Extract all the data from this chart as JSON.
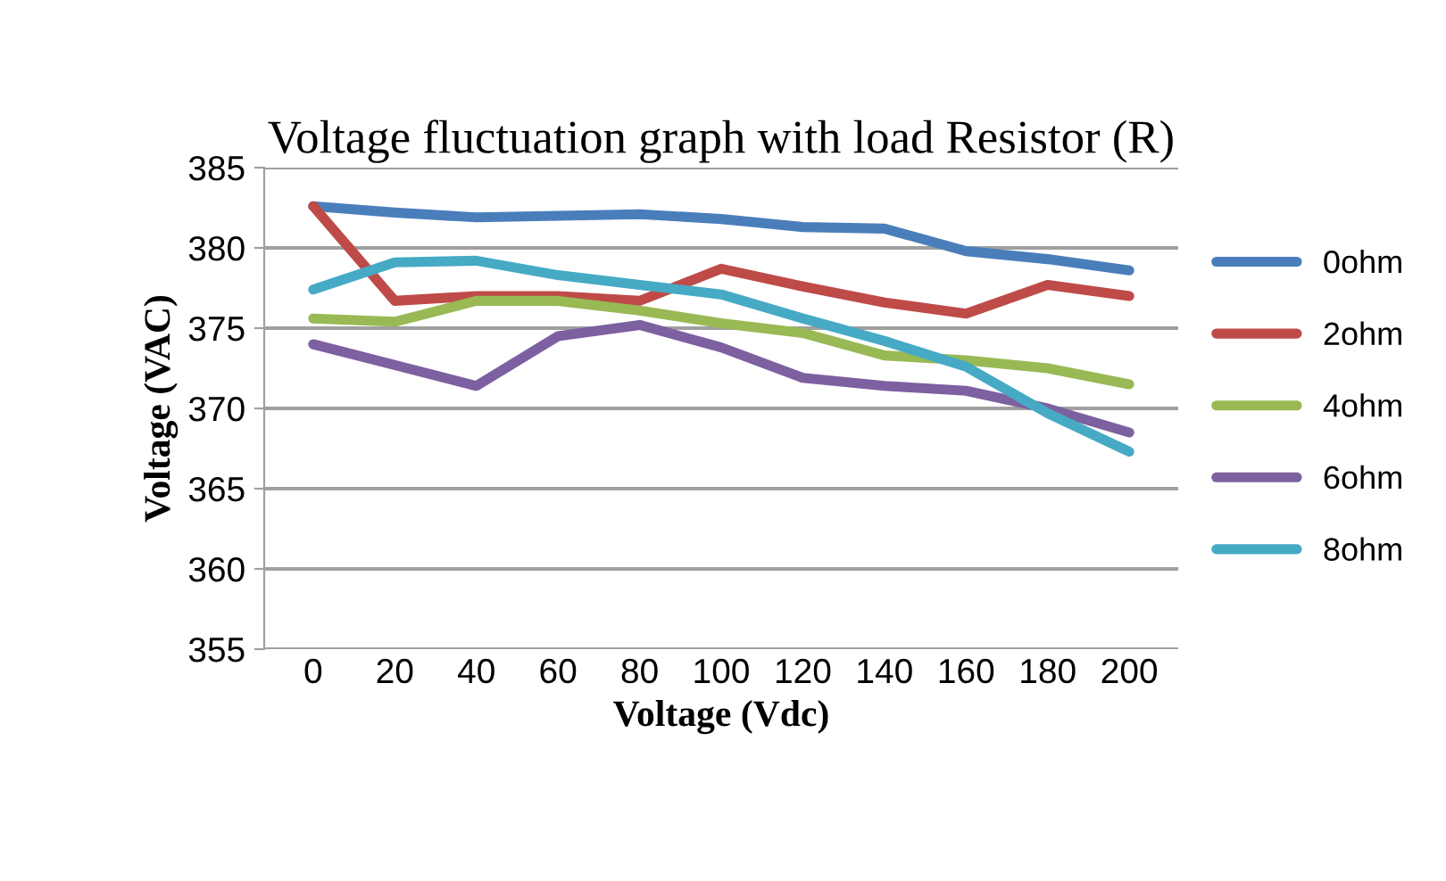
{
  "chart_data": {
    "type": "line",
    "title": "Voltage fluctuation graph with load Resistor (R)",
    "xlabel": "Voltage (Vdc)",
    "ylabel": "Voltage (VAC)",
    "categories": [
      "0",
      "20",
      "40",
      "60",
      "80",
      "100",
      "120",
      "140",
      "160",
      "180",
      "200"
    ],
    "series": [
      {
        "name": "0ohm",
        "color": "#4a7ebb",
        "values": [
          382.6,
          382.2,
          381.9,
          382.0,
          382.1,
          381.8,
          381.3,
          381.2,
          379.8,
          379.3,
          378.6
        ]
      },
      {
        "name": "2ohm",
        "color": "#be4b48",
        "values": [
          382.6,
          376.7,
          377.0,
          377.0,
          376.7,
          378.7,
          377.6,
          376.6,
          375.9,
          377.7,
          377.0
        ]
      },
      {
        "name": "4ohm",
        "color": "#98b954",
        "values": [
          375.6,
          375.4,
          376.7,
          376.7,
          376.1,
          375.3,
          374.7,
          373.3,
          373.0,
          372.5,
          371.5
        ]
      },
      {
        "name": "6ohm",
        "color": "#7d60a0",
        "values": [
          374.0,
          372.7,
          371.4,
          374.5,
          375.2,
          373.8,
          371.9,
          371.4,
          371.1,
          370.0,
          368.5
        ]
      },
      {
        "name": "8ohm",
        "color": "#46aac5",
        "values": [
          377.4,
          379.1,
          379.2,
          378.3,
          377.7,
          377.1,
          375.6,
          374.2,
          372.6,
          369.7,
          367.3
        ]
      }
    ],
    "ylim": [
      355,
      385
    ],
    "yticks": [
      355,
      360,
      365,
      370,
      375,
      380,
      385
    ],
    "grid": "y",
    "legend": "right",
    "marker": "none",
    "line_style": "solid"
  }
}
